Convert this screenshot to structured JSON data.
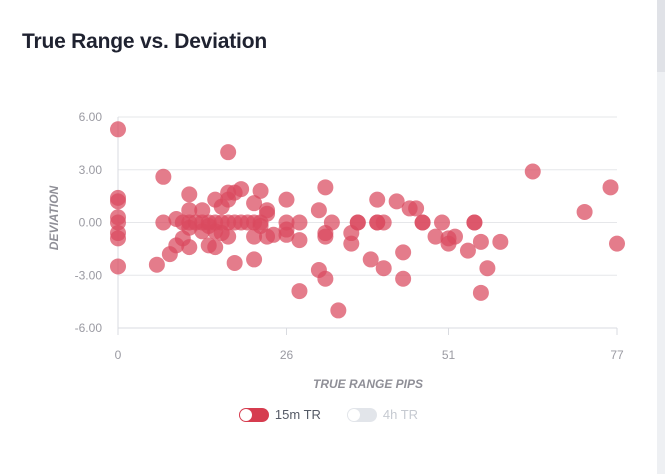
{
  "chart_data": {
    "type": "scatter",
    "title": "True Range vs. Deviation",
    "xlabel": "TRUE RANGE PIPS",
    "ylabel": "DEVIATION",
    "xlim": [
      0,
      77
    ],
    "ylim": [
      -6,
      6
    ],
    "xticks": [
      "0",
      "26",
      "51",
      "77"
    ],
    "xtick_values": [
      0,
      26,
      51,
      77
    ],
    "yticks": [
      "6.00",
      "3.00",
      "0.00",
      "-3.00",
      "-6.00"
    ],
    "ytick_values": [
      6,
      3,
      0,
      -3,
      -6
    ],
    "grid": true,
    "legend_position": "bottom-center",
    "series": [
      {
        "name": "15m TR",
        "active": true,
        "color": "#d94a5e",
        "points": [
          [
            0,
            5.3
          ],
          [
            0,
            1.4
          ],
          [
            0,
            1.2
          ],
          [
            0,
            0.3
          ],
          [
            0,
            0.0
          ],
          [
            0,
            -0.6
          ],
          [
            0,
            -0.9
          ],
          [
            0,
            -2.5
          ],
          [
            6,
            -2.4
          ],
          [
            7,
            2.6
          ],
          [
            7,
            0.0
          ],
          [
            8,
            -1.8
          ],
          [
            9,
            -1.3
          ],
          [
            9,
            0.2
          ],
          [
            10,
            0.0
          ],
          [
            10,
            -0.9
          ],
          [
            11,
            1.6
          ],
          [
            11,
            0.7
          ],
          [
            11,
            0.0
          ],
          [
            11,
            -0.3
          ],
          [
            11,
            -1.4
          ],
          [
            12,
            0.0
          ],
          [
            13,
            0.7
          ],
          [
            13,
            0.0
          ],
          [
            13,
            -0.5
          ],
          [
            14,
            0.0
          ],
          [
            14,
            -0.2
          ],
          [
            14,
            -1.3
          ],
          [
            15,
            1.3
          ],
          [
            15,
            0.0
          ],
          [
            15,
            -0.5
          ],
          [
            15,
            -1.4
          ],
          [
            16,
            0.9
          ],
          [
            16,
            0.0
          ],
          [
            16,
            -0.6
          ],
          [
            17,
            4.0
          ],
          [
            17,
            1.7
          ],
          [
            17,
            1.3
          ],
          [
            17,
            0.0
          ],
          [
            17,
            -0.8
          ],
          [
            18,
            1.7
          ],
          [
            18,
            0.0
          ],
          [
            18,
            -2.3
          ],
          [
            19,
            1.9
          ],
          [
            19,
            0.0
          ],
          [
            20,
            0.0
          ],
          [
            21,
            1.1
          ],
          [
            21,
            0.0
          ],
          [
            21,
            -0.8
          ],
          [
            21,
            -2.1
          ],
          [
            22,
            1.8
          ],
          [
            22,
            0.0
          ],
          [
            22,
            -0.2
          ],
          [
            23,
            0.7
          ],
          [
            23,
            0.5
          ],
          [
            23,
            -0.8
          ],
          [
            24,
            -0.7
          ],
          [
            26,
            1.3
          ],
          [
            26,
            0.0
          ],
          [
            26,
            -0.4
          ],
          [
            26,
            -0.7
          ],
          [
            28,
            0.0
          ],
          [
            28,
            -1.0
          ],
          [
            28,
            -3.9
          ],
          [
            31,
            0.7
          ],
          [
            31,
            -2.7
          ],
          [
            32,
            2.0
          ],
          [
            32,
            -0.6
          ],
          [
            32,
            -0.8
          ],
          [
            32,
            -3.2
          ],
          [
            33,
            0.0
          ],
          [
            34,
            -5.0
          ],
          [
            36,
            -0.6
          ],
          [
            36,
            -1.2
          ],
          [
            37,
            0.0
          ],
          [
            37,
            0.0
          ],
          [
            39,
            -2.1
          ],
          [
            40,
            1.3
          ],
          [
            40,
            0.0
          ],
          [
            40,
            0.0
          ],
          [
            41,
            0.0
          ],
          [
            41,
            -2.6
          ],
          [
            43,
            1.2
          ],
          [
            44,
            -1.7
          ],
          [
            44,
            -3.2
          ],
          [
            45,
            0.8
          ],
          [
            46,
            0.8
          ],
          [
            47,
            0.0
          ],
          [
            47,
            0.0
          ],
          [
            49,
            -0.8
          ],
          [
            50,
            0.0
          ],
          [
            51,
            -0.9
          ],
          [
            51,
            -1.2
          ],
          [
            52,
            -0.8
          ],
          [
            54,
            -1.6
          ],
          [
            55,
            0.0
          ],
          [
            55,
            0.0
          ],
          [
            56,
            -1.1
          ],
          [
            56,
            -4.0
          ],
          [
            57,
            -2.6
          ],
          [
            59,
            -1.1
          ],
          [
            64,
            2.9
          ],
          [
            72,
            0.6
          ],
          [
            76,
            2.0
          ],
          [
            77,
            -1.2
          ]
        ]
      },
      {
        "name": "4h TR",
        "active": false,
        "color": "#c9cdd4",
        "points": []
      }
    ]
  }
}
